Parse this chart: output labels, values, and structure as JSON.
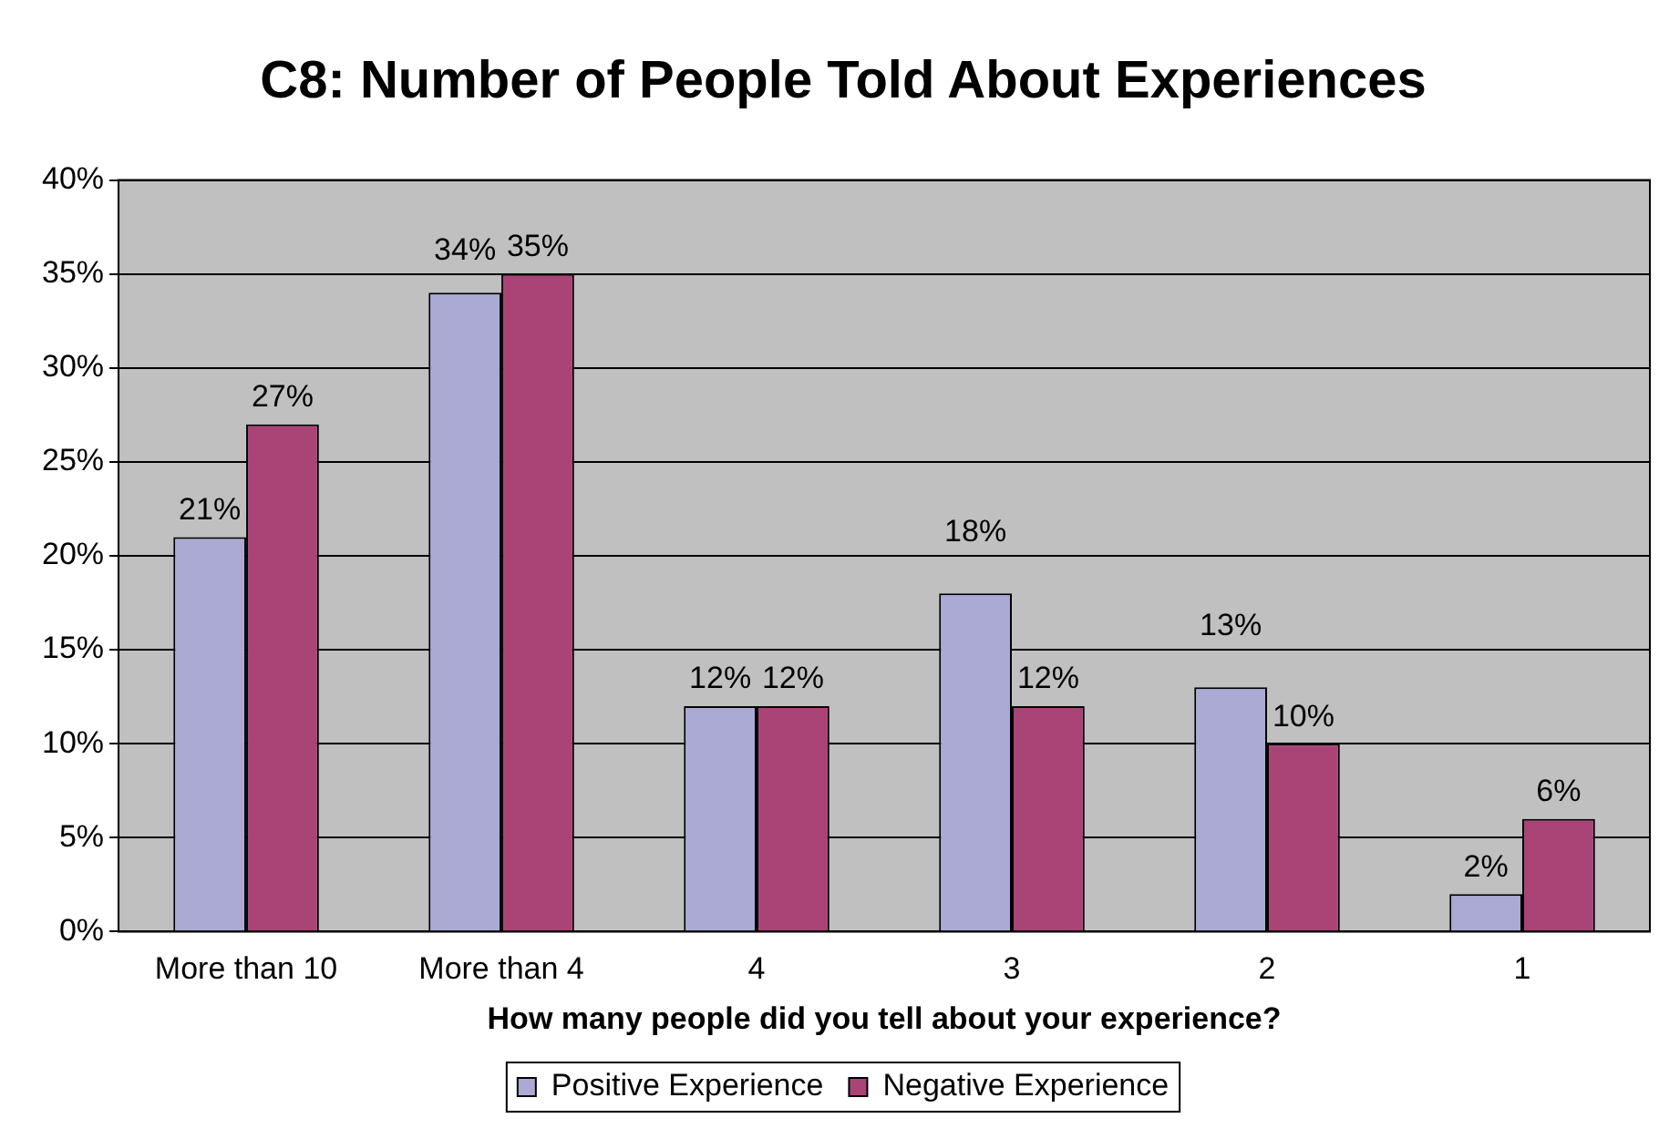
{
  "chart_data": {
    "type": "bar",
    "title": "C8: Number of People Told About Experiences",
    "xlabel": "How many people did you tell about your experience?",
    "categories": [
      "More than 10",
      "More than 4",
      "4",
      "3",
      "2",
      "1"
    ],
    "series": [
      {
        "name": "Positive Experience",
        "color": "#aaaad5",
        "values": [
          21,
          34,
          12,
          18,
          13,
          2
        ],
        "value_labels": [
          "21%",
          "34%",
          "12%",
          "18%",
          "13%",
          "2%"
        ]
      },
      {
        "name": "Negative Experience",
        "color": "#aa4477",
        "values": [
          27,
          35,
          12,
          12,
          10,
          6
        ],
        "value_labels": [
          "27%",
          "35%",
          "12%",
          "12%",
          "10%",
          "6%"
        ]
      }
    ],
    "ylim": [
      0,
      40
    ],
    "yticks": [
      {
        "value": 0,
        "label": "0%"
      },
      {
        "value": 5,
        "label": "5%"
      },
      {
        "value": 10,
        "label": "10%"
      },
      {
        "value": 15,
        "label": "15%"
      },
      {
        "value": 20,
        "label": "20%"
      },
      {
        "value": 25,
        "label": "25%"
      },
      {
        "value": 30,
        "label": "30%"
      },
      {
        "value": 35,
        "label": "35%"
      },
      {
        "value": 40,
        "label": "40%"
      }
    ],
    "grid": "y",
    "legend": "bottom"
  }
}
